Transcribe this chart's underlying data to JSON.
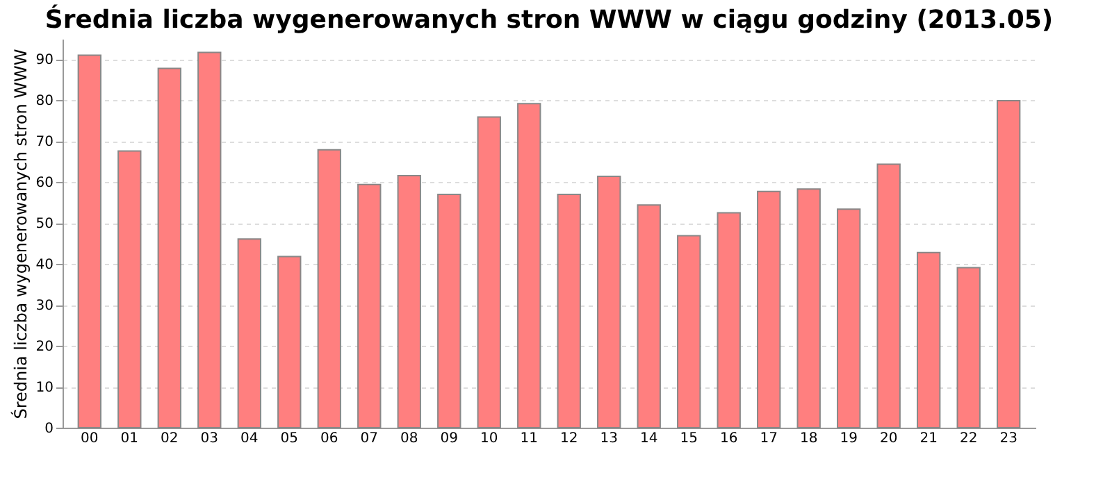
{
  "chart_data": {
    "type": "bar",
    "title": "Średnia liczba wygenerowanych stron WWW w ciągu godziny (2013.05)",
    "ylabel": "Średnia liczba wygenerowanych stron WWW",
    "categories": [
      "00",
      "01",
      "02",
      "03",
      "04",
      "05",
      "06",
      "07",
      "08",
      "09",
      "10",
      "11",
      "12",
      "13",
      "14",
      "15",
      "16",
      "17",
      "18",
      "19",
      "20",
      "21",
      "22",
      "23"
    ],
    "values": [
      91,
      67.6,
      87.8,
      91.7,
      46.1,
      41.8,
      67.9,
      59.4,
      61.6,
      57,
      75.9,
      79.2,
      57,
      61.4,
      54.4,
      46.9,
      52.5,
      57.7,
      58.3,
      53.4,
      64.4,
      42.8,
      39.1,
      79.9
    ],
    "color": "#ff7f7f",
    "ylim": [
      0,
      95
    ],
    "yticks": [
      0,
      10,
      20,
      30,
      40,
      50,
      60,
      70,
      80,
      90
    ],
    "grid": "y"
  }
}
